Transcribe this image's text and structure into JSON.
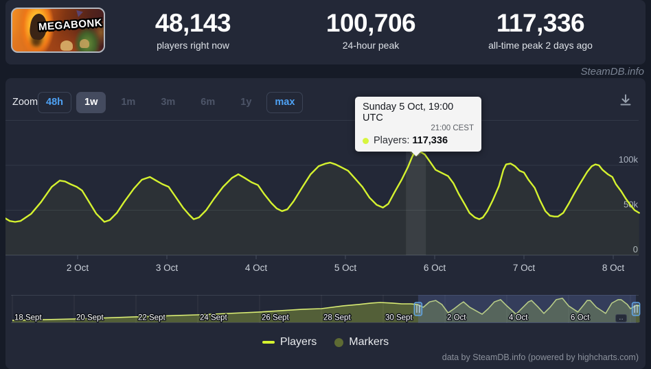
{
  "header": {
    "game_title": "MEGABONK",
    "stats": [
      {
        "value": "48,143",
        "label": "players right now"
      },
      {
        "value": "100,706",
        "label": "24-hour peak"
      },
      {
        "value": "117,336",
        "label": "all-time peak 2 days ago"
      }
    ]
  },
  "watermark": "SteamDB.info",
  "toolbar": {
    "zoom_label": "Zoom",
    "buttons": [
      {
        "label": "48h",
        "state": "enabled"
      },
      {
        "label": "1w",
        "state": "selected"
      },
      {
        "label": "1m",
        "state": "disabled"
      },
      {
        "label": "3m",
        "state": "disabled"
      },
      {
        "label": "6m",
        "state": "disabled"
      },
      {
        "label": "1y",
        "state": "disabled"
      },
      {
        "label": "max",
        "state": "enabled"
      }
    ]
  },
  "tooltip": {
    "title": "Sunday 5 Oct, 19:00 UTC",
    "subtitle": "21:00 CEST",
    "series_label": "Players:",
    "value": "117,336"
  },
  "legend": [
    {
      "label": "Players",
      "swatch": "line",
      "color": "#d5f22f"
    },
    {
      "label": "Markers",
      "swatch": "circle",
      "color": "#5e6b33"
    }
  ],
  "footer_credit": "data by SteamDB.info (powered by highcharts.com)",
  "colors": {
    "page_bg": "#161b27",
    "card_bg": "#232837",
    "accent_blue": "#4ea1f3",
    "line": "#d5f22f",
    "area_fill": "rgba(213,243,47,0.05)",
    "marker_fill": "#dcf94e",
    "marker_halo": "rgba(215,245,62,0.28)",
    "hover_band": "rgba(255,255,255,0.07)",
    "grid_line": "#323947",
    "axis_line": "#454d5e",
    "x_label": "#ccd2db",
    "y_label": "#aeb6c3",
    "nav_border": "#3a4150",
    "nav_grid": "rgba(255,255,255,0.08)",
    "nav_area_fill": "rgba(188,212,58,0.32)",
    "nav_line": "#d9ec74",
    "nav_mask": "rgba(97,117,186,0.28)",
    "handle_fill": "rgba(150,190,230,0.25)",
    "handle_border": "#5fa5e6",
    "handle_grip": "#bcd9f2",
    "tooltip_bg": "#f4f4f4",
    "tooltip_dot": "#d7f53e"
  },
  "chart_data": {
    "type": "line",
    "title": "",
    "ylabel": "",
    "ylim": [
      0,
      150000
    ],
    "gridlines_k": [
      0,
      50,
      100,
      150
    ],
    "y_axis": {
      "ticks": [
        {
          "v": 0,
          "label": "0"
        },
        {
          "v": 50000,
          "label": "50k"
        },
        {
          "v": 100000,
          "label": "100k"
        }
      ]
    },
    "x_axis": {
      "unit": "days since 2 Oct 00:00 UTC",
      "range": [
        -0.81,
        6.29
      ],
      "ticks": [
        {
          "t": 0,
          "label": "2 Oct"
        },
        {
          "t": 1,
          "label": "3 Oct"
        },
        {
          "t": 2,
          "label": "4 Oct"
        },
        {
          "t": 3,
          "label": "5 Oct"
        },
        {
          "t": 4,
          "label": "6 Oct"
        },
        {
          "t": 5,
          "label": "7 Oct"
        },
        {
          "t": 6,
          "label": "8 Oct"
        }
      ]
    },
    "series": [
      {
        "name": "Players",
        "color": "#d5f22f",
        "points": [
          [
            -0.81,
            41000
          ],
          [
            -0.76,
            38000
          ],
          [
            -0.7,
            37000
          ],
          [
            -0.64,
            38000
          ],
          [
            -0.52,
            46000
          ],
          [
            -0.41,
            59000
          ],
          [
            -0.29,
            76000
          ],
          [
            -0.2,
            83000
          ],
          [
            -0.14,
            82000
          ],
          [
            -0.08,
            79000
          ],
          [
            -0.01,
            76000
          ],
          [
            0.05,
            72000
          ],
          [
            0.13,
            59000
          ],
          [
            0.21,
            46000
          ],
          [
            0.3,
            37000
          ],
          [
            0.36,
            39000
          ],
          [
            0.44,
            47000
          ],
          [
            0.52,
            59000
          ],
          [
            0.63,
            74000
          ],
          [
            0.72,
            84000
          ],
          [
            0.81,
            87000
          ],
          [
            0.88,
            83000
          ],
          [
            0.95,
            79000
          ],
          [
            1.02,
            76000
          ],
          [
            1.09,
            66000
          ],
          [
            1.18,
            53000
          ],
          [
            1.25,
            45000
          ],
          [
            1.3,
            40000
          ],
          [
            1.36,
            42000
          ],
          [
            1.44,
            50000
          ],
          [
            1.53,
            63000
          ],
          [
            1.63,
            76000
          ],
          [
            1.73,
            86000
          ],
          [
            1.8,
            90000
          ],
          [
            1.87,
            86000
          ],
          [
            1.95,
            81000
          ],
          [
            2.02,
            78000
          ],
          [
            2.09,
            68000
          ],
          [
            2.17,
            58000
          ],
          [
            2.23,
            52000
          ],
          [
            2.29,
            49000
          ],
          [
            2.35,
            51000
          ],
          [
            2.42,
            60000
          ],
          [
            2.52,
            76000
          ],
          [
            2.61,
            90000
          ],
          [
            2.7,
            99000
          ],
          [
            2.78,
            102000
          ],
          [
            2.83,
            103000
          ],
          [
            2.89,
            101000
          ],
          [
            2.95,
            98000
          ],
          [
            3.03,
            94000
          ],
          [
            3.11,
            85000
          ],
          [
            3.19,
            76000
          ],
          [
            3.27,
            64000
          ],
          [
            3.35,
            56000
          ],
          [
            3.42,
            53000
          ],
          [
            3.48,
            57000
          ],
          [
            3.55,
            70000
          ],
          [
            3.63,
            84000
          ],
          [
            3.7,
            98000
          ],
          [
            3.75,
            110000
          ],
          [
            3.79,
            117336
          ],
          [
            3.84,
            115000
          ],
          [
            3.89,
            112000
          ],
          [
            3.94,
            105000
          ],
          [
            4.01,
            95000
          ],
          [
            4.09,
            91000
          ],
          [
            4.15,
            88000
          ],
          [
            4.21,
            80000
          ],
          [
            4.27,
            68000
          ],
          [
            4.34,
            56000
          ],
          [
            4.39,
            47000
          ],
          [
            4.45,
            42000
          ],
          [
            4.5,
            40000
          ],
          [
            4.54,
            42000
          ],
          [
            4.59,
            49000
          ],
          [
            4.65,
            61000
          ],
          [
            4.72,
            77000
          ],
          [
            4.77,
            95000
          ],
          [
            4.8,
            101000
          ],
          [
            4.85,
            102000
          ],
          [
            4.9,
            99000
          ],
          [
            4.95,
            94000
          ],
          [
            5.0,
            92000
          ],
          [
            5.05,
            84000
          ],
          [
            5.12,
            75000
          ],
          [
            5.18,
            61000
          ],
          [
            5.24,
            49000
          ],
          [
            5.29,
            44000
          ],
          [
            5.34,
            43000
          ],
          [
            5.38,
            43000
          ],
          [
            5.44,
            47000
          ],
          [
            5.5,
            57000
          ],
          [
            5.56,
            68000
          ],
          [
            5.63,
            80000
          ],
          [
            5.71,
            93000
          ],
          [
            5.76,
            99000
          ],
          [
            5.8,
            101000
          ],
          [
            5.84,
            100000
          ],
          [
            5.88,
            95000
          ],
          [
            5.94,
            90000
          ],
          [
            5.99,
            87000
          ],
          [
            6.03,
            79000
          ],
          [
            6.09,
            71000
          ],
          [
            6.14,
            63000
          ],
          [
            6.19,
            56000
          ],
          [
            6.24,
            50000
          ],
          [
            6.29,
            47000
          ]
        ]
      }
    ],
    "selected_point": {
      "t": 3.79,
      "players": 117336,
      "label": "Sunday 5 Oct, 19:00 UTC"
    },
    "navigator": {
      "unit": "days since 18 Sept 00:00 UTC",
      "range": [
        0,
        20.3
      ],
      "selected_range": [
        13.13,
        20.18
      ],
      "more_label": "‥",
      "ticks": [
        {
          "t": 0,
          "label": "18 Sept"
        },
        {
          "t": 2,
          "label": "20 Sept"
        },
        {
          "t": 4,
          "label": "22 Sept"
        },
        {
          "t": 6,
          "label": "24 Sept"
        },
        {
          "t": 8,
          "label": "26 Sept"
        },
        {
          "t": 10,
          "label": "28 Sept"
        },
        {
          "t": 12,
          "label": "30 Sept"
        },
        {
          "t": 14,
          "label": "2 Oct"
        },
        {
          "t": 16,
          "label": "4 Oct"
        },
        {
          "t": 18,
          "label": "6 Oct"
        }
      ],
      "points": [
        [
          0,
          10000
        ],
        [
          2,
          17000
        ],
        [
          4,
          28000
        ],
        [
          6,
          38000
        ],
        [
          8,
          52000
        ],
        [
          9.4,
          66000
        ],
        [
          10,
          69000
        ],
        [
          10.7,
          83000
        ],
        [
          11.2,
          90000
        ],
        [
          11.6,
          97000
        ],
        [
          11.9,
          100000
        ],
        [
          12.3,
          97000
        ],
        [
          12.6,
          93000
        ],
        [
          12.9,
          93000
        ],
        [
          13.1,
          90000
        ],
        [
          13.3,
          76000
        ],
        [
          13.5,
          103000
        ],
        [
          13.7,
          110000
        ],
        [
          13.9,
          90000
        ],
        [
          14.1,
          48000
        ],
        [
          14.3,
          69000
        ],
        [
          14.5,
          93000
        ],
        [
          14.6,
          103000
        ],
        [
          14.8,
          76000
        ],
        [
          15.2,
          41000
        ],
        [
          15.4,
          69000
        ],
        [
          15.6,
          103000
        ],
        [
          15.8,
          114000
        ],
        [
          16.0,
          83000
        ],
        [
          16.3,
          41000
        ],
        [
          16.5,
          72000
        ],
        [
          16.7,
          103000
        ],
        [
          16.8,
          110000
        ],
        [
          17.0,
          79000
        ],
        [
          17.2,
          45000
        ],
        [
          17.4,
          76000
        ],
        [
          17.6,
          114000
        ],
        [
          17.8,
          121000
        ],
        [
          18.0,
          83000
        ],
        [
          18.3,
          52000
        ],
        [
          18.5,
          90000
        ],
        [
          18.6,
          110000
        ],
        [
          18.7,
          110000
        ],
        [
          18.9,
          76000
        ],
        [
          19.2,
          45000
        ],
        [
          19.4,
          97000
        ],
        [
          19.6,
          114000
        ],
        [
          19.7,
          114000
        ],
        [
          19.9,
          90000
        ],
        [
          20.0,
          69000
        ],
        [
          20.2,
          86000
        ],
        [
          20.3,
          83000
        ]
      ]
    }
  }
}
